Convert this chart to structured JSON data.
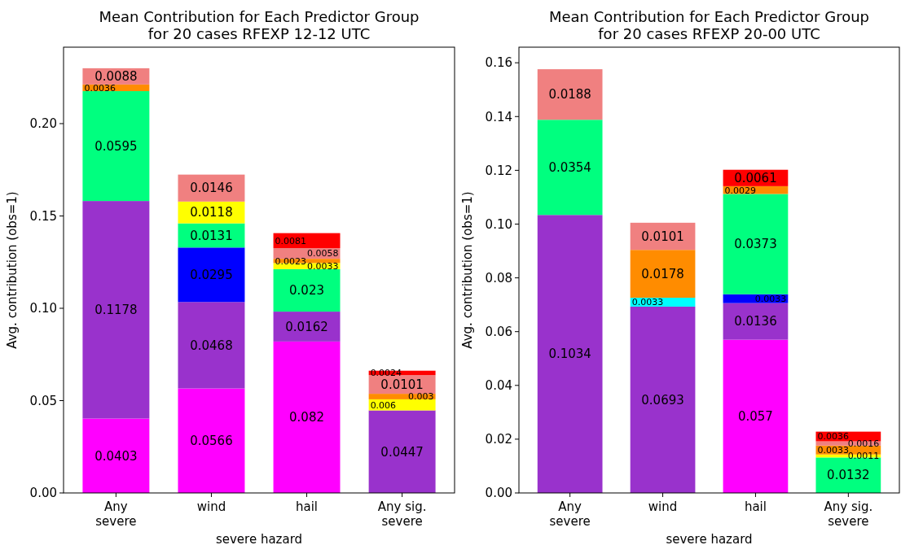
{
  "chart_data": [
    {
      "type": "bar",
      "title": "Mean Contribution for Each Predictor Group\nfor 20 cases RFEXP 12-12 UTC",
      "xlabel": "severe hazard",
      "ylabel": "Avg. contribution (obs=1)",
      "categories": [
        "Any\nsevere",
        "wind",
        "hail",
        "Any sig.\nsevere"
      ],
      "stacked": true,
      "data_labels": true,
      "grid": false,
      "legend": false,
      "ylim": [
        0,
        0.2414
      ],
      "yticks": [
        {
          "value": 0,
          "label": "0.00"
        },
        {
          "value": 0.05,
          "label": "0.05"
        },
        {
          "value": 0.1,
          "label": "0.10"
        },
        {
          "value": 0.15,
          "label": "0.15"
        },
        {
          "value": 0.2,
          "label": "0.20"
        }
      ],
      "series": [
        {
          "color": "#ff00ff",
          "values": [
            0.0403,
            0.0566,
            0.082,
            null
          ]
        },
        {
          "color": "#9932cc",
          "values": [
            0.1178,
            0.0468,
            0.0162,
            0.0447
          ]
        },
        {
          "color": "#0000ff",
          "values": [
            null,
            0.0295,
            null,
            null
          ]
        },
        {
          "color": "#00ff7f",
          "values": [
            0.0595,
            0.0131,
            0.023,
            null
          ]
        },
        {
          "color": "#ffff00",
          "values": [
            null,
            0.0118,
            0.0033,
            0.006
          ]
        },
        {
          "color": "#ff8c00",
          "values": [
            0.0036,
            null,
            0.0023,
            0.003
          ]
        },
        {
          "color": "#f08080",
          "values": [
            0.0088,
            0.0146,
            0.0058,
            0.0101
          ]
        },
        {
          "color": "#ff0000",
          "values": [
            null,
            null,
            0.0081,
            0.0024
          ]
        }
      ]
    },
    {
      "type": "bar",
      "title": "Mean Contribution for Each Predictor Group\nfor 20 cases RFEXP 20-00 UTC",
      "xlabel": "severe hazard",
      "ylabel": "Avg. contribution (obs=1)",
      "categories": [
        "Any\nsevere",
        "wind",
        "hail",
        "Any sig.\nsevere"
      ],
      "stacked": true,
      "data_labels": true,
      "grid": false,
      "legend": false,
      "ylim": [
        0,
        0.1658
      ],
      "yticks": [
        {
          "value": 0,
          "label": "0.00"
        },
        {
          "value": 0.02,
          "label": "0.02"
        },
        {
          "value": 0.04,
          "label": "0.04"
        },
        {
          "value": 0.06,
          "label": "0.06"
        },
        {
          "value": 0.08,
          "label": "0.08"
        },
        {
          "value": 0.1,
          "label": "0.10"
        },
        {
          "value": 0.12,
          "label": "0.12"
        },
        {
          "value": 0.14,
          "label": "0.14"
        },
        {
          "value": 0.16,
          "label": "0.16"
        }
      ],
      "series": [
        {
          "color": "#ff00ff",
          "values": [
            null,
            null,
            0.057,
            null
          ]
        },
        {
          "color": "#9932cc",
          "values": [
            0.1034,
            0.0693,
            0.0136,
            null
          ]
        },
        {
          "color": "#0000ff",
          "values": [
            null,
            null,
            0.0033,
            null
          ]
        },
        {
          "color": "#00ffff",
          "values": [
            null,
            0.0033,
            null,
            null
          ]
        },
        {
          "color": "#00ff7f",
          "values": [
            0.0354,
            null,
            0.0373,
            0.0132
          ]
        },
        {
          "color": "#ffff00",
          "values": [
            null,
            null,
            null,
            0.0011
          ]
        },
        {
          "color": "#ff8c00",
          "values": [
            null,
            0.0178,
            0.0029,
            0.0033
          ]
        },
        {
          "color": "#f08080",
          "values": [
            0.0188,
            0.0101,
            null,
            0.0016
          ]
        },
        {
          "color": "#ff0000",
          "values": [
            null,
            null,
            0.0061,
            0.0036
          ]
        }
      ]
    }
  ]
}
